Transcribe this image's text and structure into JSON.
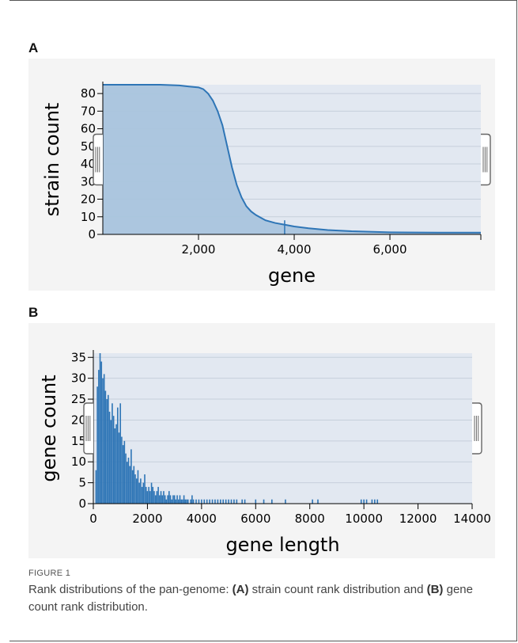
{
  "panels": [
    {
      "label": "A"
    },
    {
      "label": "B"
    }
  ],
  "caption": {
    "figure_label": "FIGURE 1",
    "parts": [
      {
        "text": "Rank distributions of the pan-genome: ",
        "bold": false
      },
      {
        "text": "(A)",
        "bold": true
      },
      {
        "text": " strain count rank distribution and ",
        "bold": false
      },
      {
        "text": "(B)",
        "bold": true
      },
      {
        "text": " gene count rank distribution.",
        "bold": false
      }
    ]
  },
  "colors": {
    "plot_bg": "#e2e8f1",
    "fill_light": "#a9c4dd",
    "line": "#2e75b6",
    "bar": "#2e75b6",
    "gridline": "#c6cfdb",
    "handle": "#666666"
  },
  "chart_data": [
    {
      "type": "area",
      "xlabel": "gene",
      "ylabel": "strain count",
      "xlim": [
        0,
        7900
      ],
      "ylim": [
        0,
        85
      ],
      "x_ticks": [
        2000,
        4000,
        6000
      ],
      "x_tick_labels": [
        "2,000",
        "4,000",
        "6,000"
      ],
      "y_ticks": [
        0,
        10,
        20,
        30,
        40,
        50,
        60,
        70,
        80
      ],
      "y_tick_labels": [
        "0",
        "10",
        "20",
        "30",
        "40",
        "50",
        "60",
        "70",
        "80"
      ],
      "grid": true,
      "marker_x": 3800,
      "points": [
        [
          0,
          85
        ],
        [
          1200,
          85
        ],
        [
          1600,
          84.6
        ],
        [
          1800,
          84
        ],
        [
          2000,
          83.5
        ],
        [
          2100,
          82.5
        ],
        [
          2200,
          80
        ],
        [
          2300,
          76
        ],
        [
          2400,
          70
        ],
        [
          2500,
          62
        ],
        [
          2600,
          50
        ],
        [
          2700,
          38
        ],
        [
          2800,
          28
        ],
        [
          2900,
          21
        ],
        [
          3000,
          16
        ],
        [
          3100,
          13
        ],
        [
          3200,
          11
        ],
        [
          3300,
          9.5
        ],
        [
          3400,
          8
        ],
        [
          3600,
          6.5
        ],
        [
          3800,
          5.5
        ],
        [
          4000,
          4.5
        ],
        [
          4300,
          3.5
        ],
        [
          4700,
          2.5
        ],
        [
          5200,
          1.8
        ],
        [
          6000,
          1.2
        ],
        [
          7000,
          1
        ],
        [
          7900,
          1
        ]
      ]
    },
    {
      "type": "bar",
      "xlabel": "gene length",
      "ylabel": "gene count",
      "xlim": [
        0,
        14000
      ],
      "ylim": [
        0,
        36
      ],
      "x_ticks": [
        0,
        2000,
        4000,
        6000,
        8000,
        10000,
        12000,
        14000
      ],
      "x_tick_labels": [
        "0",
        "2000",
        "4000",
        "6000",
        "8000",
        "10000",
        "12000",
        "14000"
      ],
      "y_ticks": [
        0,
        5,
        10,
        15,
        20,
        25,
        30,
        35
      ],
      "y_tick_labels": [
        "0",
        "5",
        "10",
        "15",
        "20",
        "25",
        "30",
        "35"
      ],
      "grid": true,
      "points": [
        [
          100,
          8
        ],
        [
          150,
          28
        ],
        [
          200,
          32
        ],
        [
          250,
          36
        ],
        [
          300,
          34
        ],
        [
          350,
          30
        ],
        [
          400,
          31
        ],
        [
          450,
          27
        ],
        [
          500,
          25
        ],
        [
          550,
          26
        ],
        [
          600,
          22
        ],
        [
          650,
          20
        ],
        [
          700,
          24
        ],
        [
          750,
          21
        ],
        [
          800,
          18
        ],
        [
          850,
          19
        ],
        [
          900,
          23
        ],
        [
          950,
          17
        ],
        [
          1000,
          24
        ],
        [
          1050,
          16
        ],
        [
          1100,
          14
        ],
        [
          1150,
          15
        ],
        [
          1200,
          12
        ],
        [
          1250,
          10
        ],
        [
          1300,
          11
        ],
        [
          1350,
          9
        ],
        [
          1400,
          13
        ],
        [
          1450,
          8
        ],
        [
          1500,
          9
        ],
        [
          1550,
          7
        ],
        [
          1600,
          6
        ],
        [
          1650,
          8
        ],
        [
          1700,
          5
        ],
        [
          1750,
          6
        ],
        [
          1800,
          4
        ],
        [
          1850,
          5
        ],
        [
          1900,
          7
        ],
        [
          1950,
          4
        ],
        [
          2000,
          3
        ],
        [
          2050,
          4
        ],
        [
          2100,
          3
        ],
        [
          2150,
          5
        ],
        [
          2200,
          4
        ],
        [
          2250,
          3
        ],
        [
          2300,
          2
        ],
        [
          2350,
          3
        ],
        [
          2400,
          4
        ],
        [
          2450,
          2
        ],
        [
          2500,
          3
        ],
        [
          2550,
          2
        ],
        [
          2600,
          3
        ],
        [
          2650,
          2
        ],
        [
          2700,
          1
        ],
        [
          2750,
          2
        ],
        [
          2800,
          3
        ],
        [
          2850,
          2
        ],
        [
          2900,
          1
        ],
        [
          2950,
          2
        ],
        [
          3000,
          2
        ],
        [
          3050,
          1
        ],
        [
          3100,
          2
        ],
        [
          3150,
          1
        ],
        [
          3200,
          2
        ],
        [
          3250,
          1
        ],
        [
          3300,
          1
        ],
        [
          3350,
          2
        ],
        [
          3400,
          1
        ],
        [
          3450,
          1
        ],
        [
          3500,
          1
        ],
        [
          3600,
          1
        ],
        [
          3650,
          2
        ],
        [
          3700,
          1
        ],
        [
          3800,
          1
        ],
        [
          3900,
          1
        ],
        [
          4000,
          1
        ],
        [
          4100,
          1
        ],
        [
          4200,
          1
        ],
        [
          4300,
          1
        ],
        [
          4400,
          1
        ],
        [
          4500,
          1
        ],
        [
          4600,
          1
        ],
        [
          4700,
          1
        ],
        [
          4800,
          1
        ],
        [
          4900,
          1
        ],
        [
          5000,
          1
        ],
        [
          5100,
          1
        ],
        [
          5200,
          1
        ],
        [
          5300,
          1
        ],
        [
          5500,
          1
        ],
        [
          5600,
          1
        ],
        [
          6000,
          1
        ],
        [
          6300,
          1
        ],
        [
          6600,
          1
        ],
        [
          7100,
          1
        ],
        [
          8100,
          1
        ],
        [
          8300,
          1
        ],
        [
          9900,
          1
        ],
        [
          10000,
          1
        ],
        [
          10100,
          1
        ],
        [
          10300,
          1
        ],
        [
          10400,
          1
        ],
        [
          10500,
          1
        ]
      ]
    }
  ]
}
